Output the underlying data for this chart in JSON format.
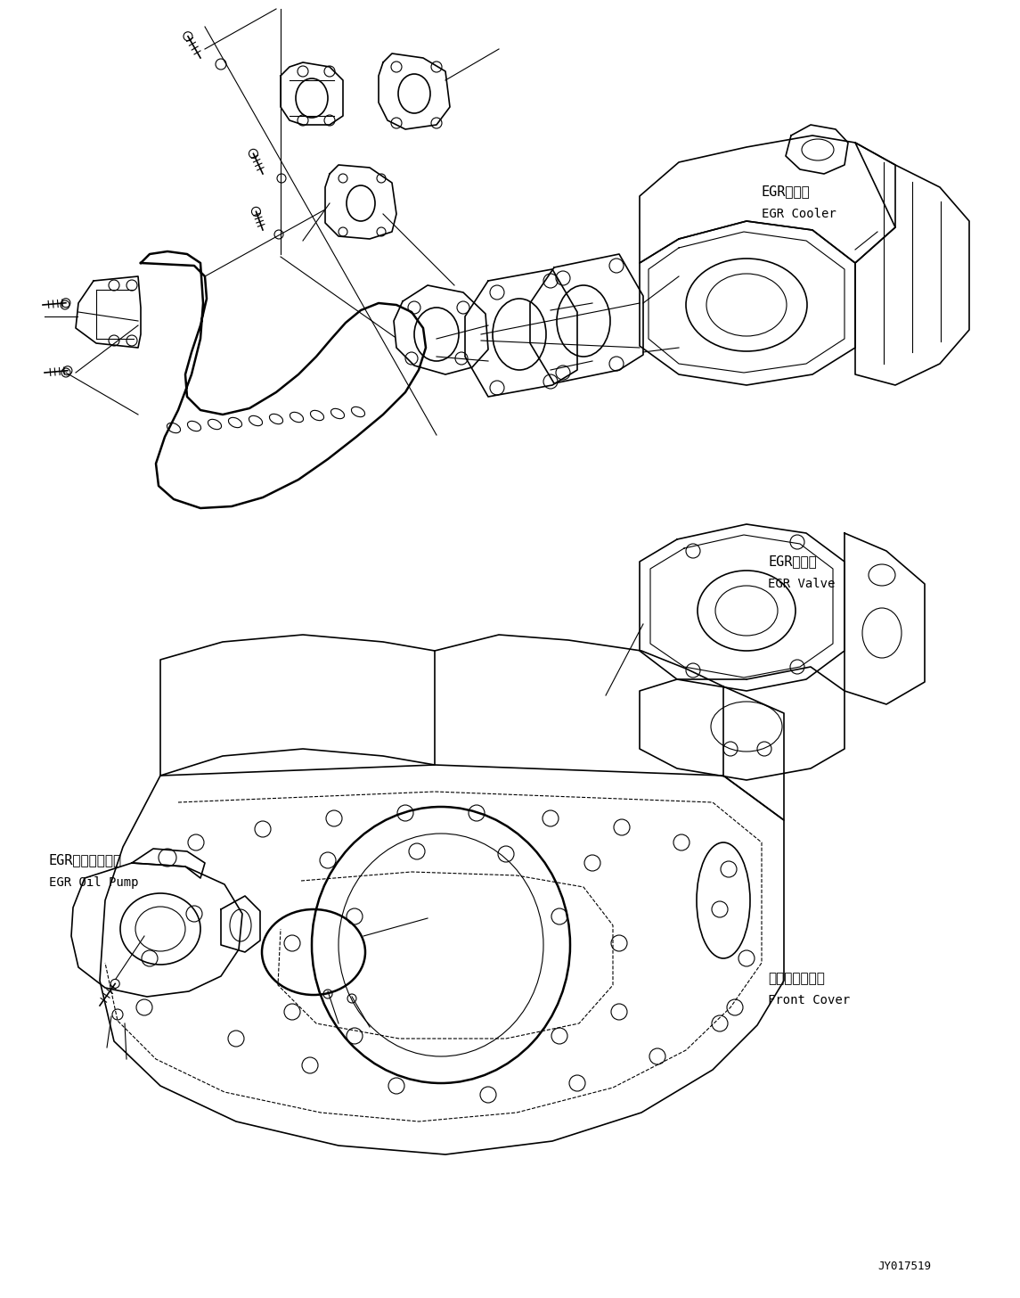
{
  "bg_color": "#ffffff",
  "line_color": "#000000",
  "fig_width": 11.45,
  "fig_height": 14.56,
  "dpi": 100,
  "labels": {
    "egr_cooler_jp": "EGRクーラ",
    "egr_cooler_en": "EGR Cooler",
    "egr_valve_jp": "EGRバルブ",
    "egr_valve_en": "EGR Valve",
    "egr_oil_pump_jp": "EGRオイルポンプ",
    "egr_oil_pump_en": "EGR Oil Pump",
    "front_cover_jp": "フロントカバー",
    "front_cover_en": "Front Cover",
    "part_number": "JY017519"
  }
}
